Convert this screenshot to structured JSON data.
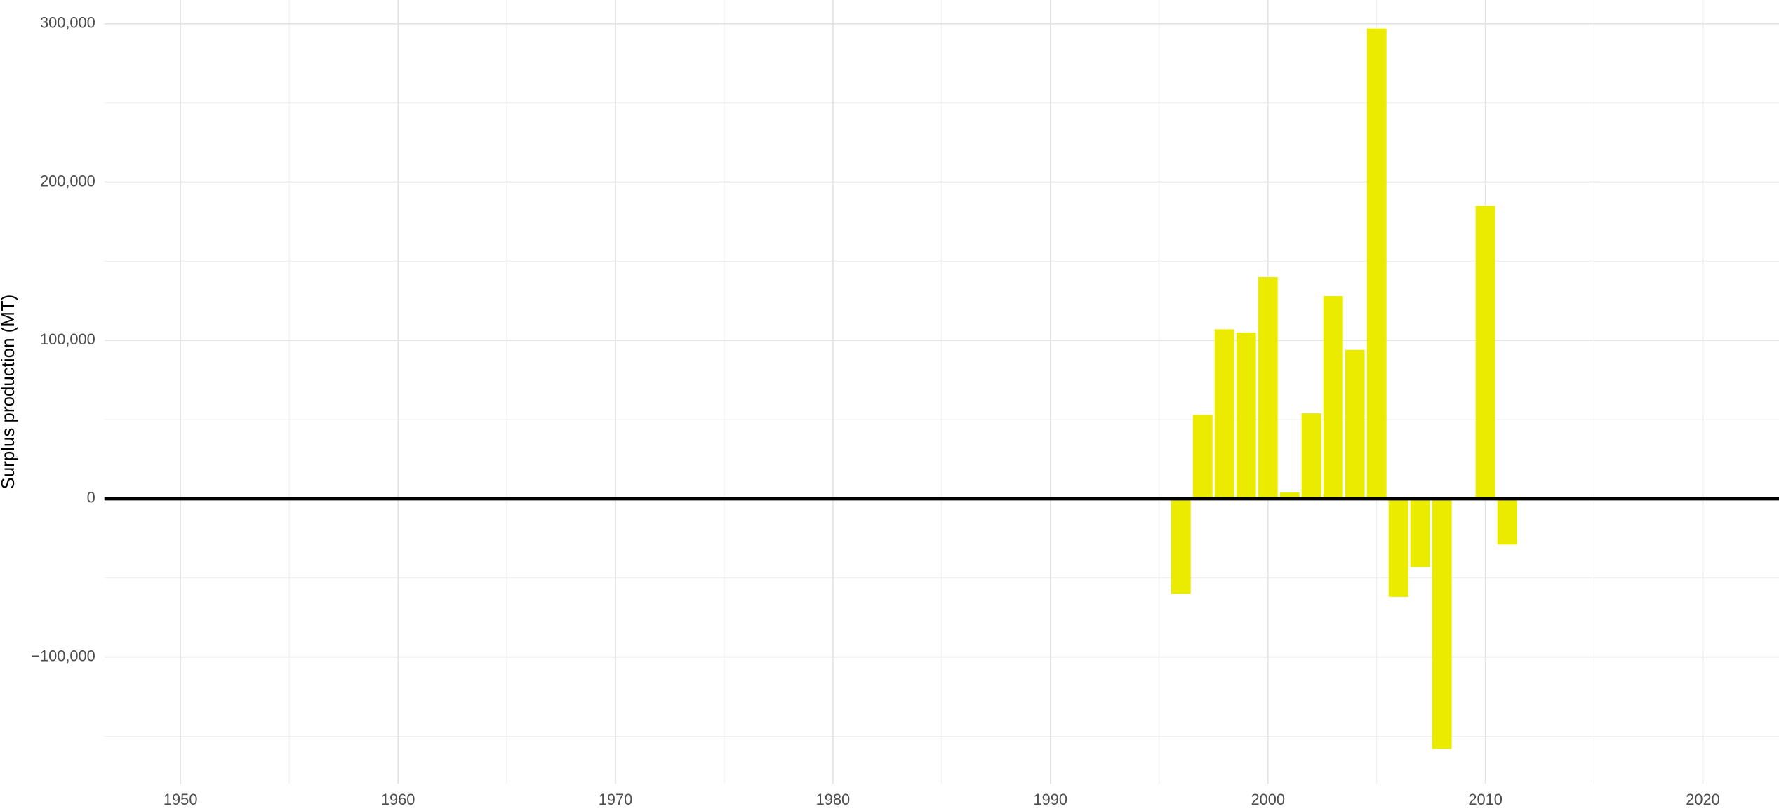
{
  "chart_data": {
    "type": "bar",
    "y_label": "Surplus production (MT)",
    "x": [
      1996,
      1997,
      1998,
      1999,
      2000,
      2001,
      2002,
      2003,
      2004,
      2005,
      2006,
      2007,
      2008,
      2010,
      2011
    ],
    "values": [
      -60000,
      53000,
      107000,
      105000,
      140000,
      4000,
      54000,
      128000,
      94000,
      297000,
      -62000,
      -43000,
      -158000,
      185000,
      -29000
    ],
    "color": "#ebeb00",
    "xlim": [
      1946.5,
      2023.5
    ],
    "xticks": [
      1950,
      1960,
      1970,
      1980,
      1990,
      2000,
      2010,
      2020
    ],
    "xticks_minor": [
      1955,
      1965,
      1975,
      1985,
      1995,
      2005,
      2015
    ],
    "ylim": [
      -180000,
      315000
    ],
    "yticks": [
      {
        "value": -100000,
        "label": "−100,000"
      },
      0,
      {
        "value": 100000,
        "label": "100,000"
      },
      {
        "value": 200000,
        "label": "200,000"
      },
      {
        "value": 300000,
        "label": "300,000"
      }
    ],
    "yticks_minor": [
      -150000,
      -50000,
      50000,
      150000,
      250000
    ],
    "grid": true
  }
}
